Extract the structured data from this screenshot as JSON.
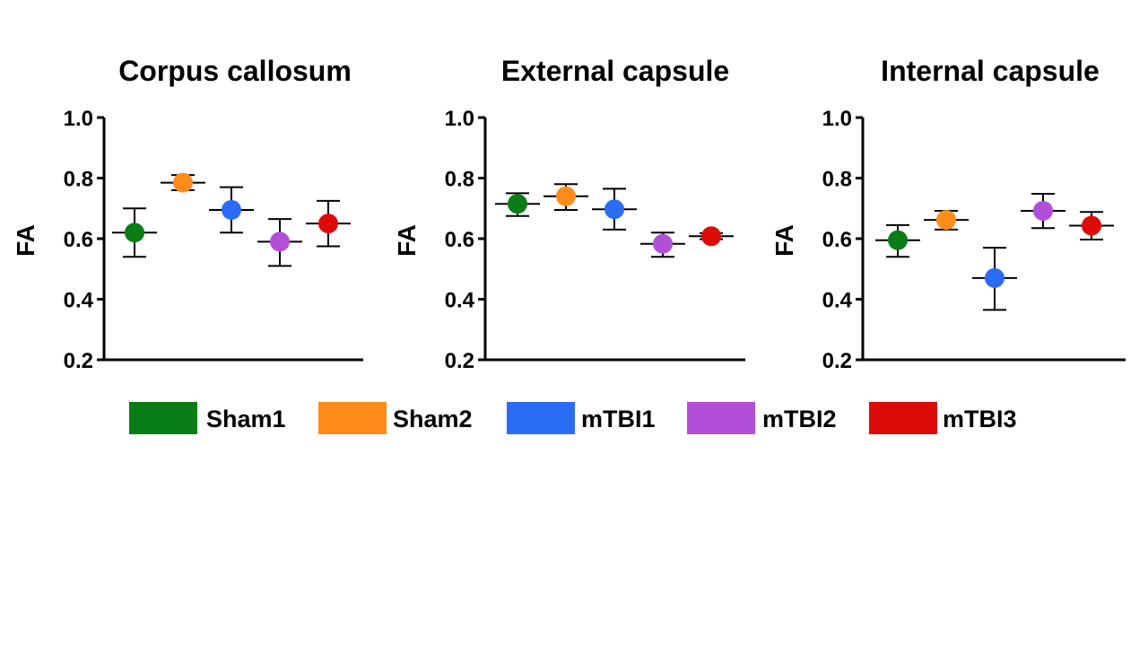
{
  "chart_data": [
    {
      "type": "scatter",
      "title": "Corpus callosum",
      "ylabel": "FA",
      "xlabel": "",
      "ylim": [
        0.2,
        1.0
      ],
      "yticks": [
        "0.2",
        "0.4",
        "0.6",
        "0.8",
        "1.0"
      ],
      "series": [
        {
          "name": "Sham1",
          "mean": 0.62,
          "low": 0.54,
          "high": 0.7
        },
        {
          "name": "Sham2",
          "mean": 0.785,
          "low": 0.76,
          "high": 0.81
        },
        {
          "name": "mTBI1",
          "mean": 0.695,
          "low": 0.62,
          "high": 0.77
        },
        {
          "name": "mTBI2",
          "mean": 0.59,
          "low": 0.51,
          "high": 0.665
        },
        {
          "name": "mTBI3",
          "mean": 0.65,
          "low": 0.575,
          "high": 0.725
        }
      ]
    },
    {
      "type": "scatter",
      "title": "External capsule",
      "ylabel": "FA",
      "xlabel": "",
      "ylim": [
        0.2,
        1.0
      ],
      "yticks": [
        "0.2",
        "0.4",
        "0.6",
        "0.8",
        "1.0"
      ],
      "series": [
        {
          "name": "Sham1",
          "mean": 0.715,
          "low": 0.675,
          "high": 0.75
        },
        {
          "name": "Sham2",
          "mean": 0.74,
          "low": 0.695,
          "high": 0.78
        },
        {
          "name": "mTBI1",
          "mean": 0.697,
          "low": 0.63,
          "high": 0.765
        },
        {
          "name": "mTBI2",
          "mean": 0.583,
          "low": 0.54,
          "high": 0.62
        },
        {
          "name": "mTBI3",
          "mean": 0.608,
          "low": 0.598,
          "high": 0.618
        }
      ]
    },
    {
      "type": "scatter",
      "title": "Internal capsule",
      "ylabel": "FA",
      "xlabel": "",
      "ylim": [
        0.2,
        1.0
      ],
      "yticks": [
        "0.2",
        "0.4",
        "0.6",
        "0.8",
        "1.0"
      ],
      "series": [
        {
          "name": "Sham1",
          "mean": 0.595,
          "low": 0.54,
          "high": 0.645
        },
        {
          "name": "Sham2",
          "mean": 0.662,
          "low": 0.63,
          "high": 0.692
        },
        {
          "name": "mTBI1",
          "mean": 0.47,
          "low": 0.365,
          "high": 0.57
        },
        {
          "name": "mTBI2",
          "mean": 0.692,
          "low": 0.635,
          "high": 0.748
        },
        {
          "name": "mTBI3",
          "mean": 0.643,
          "low": 0.597,
          "high": 0.688
        }
      ]
    }
  ],
  "legend": [
    {
      "label": "Sham1",
      "color": "#0a7d16"
    },
    {
      "label": "Sham2",
      "color": "#ff8c1a"
    },
    {
      "label": "mTBI1",
      "color": "#2a6cf5"
    },
    {
      "label": "mTBI2",
      "color": "#b24fd8"
    },
    {
      "label": "mTBI3",
      "color": "#dd0a0a"
    }
  ]
}
